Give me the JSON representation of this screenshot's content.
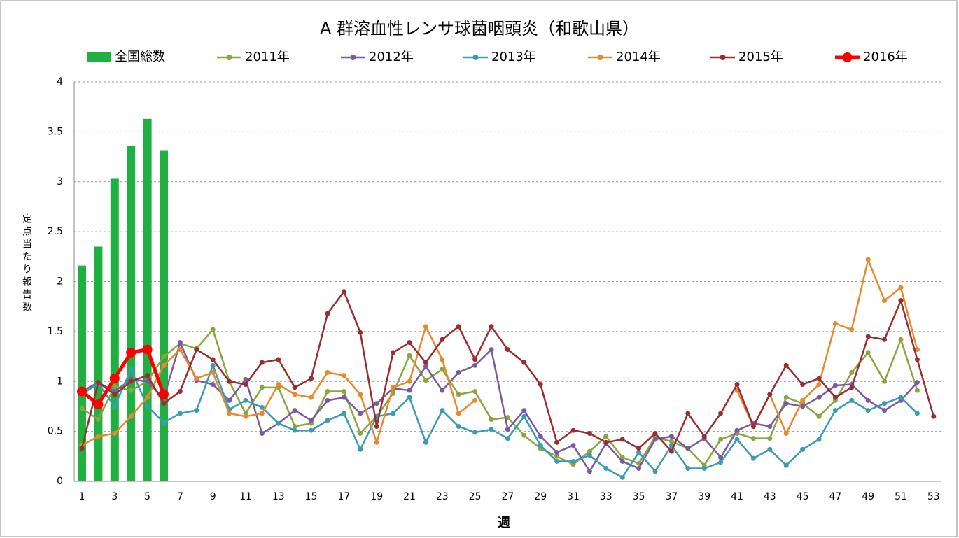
{
  "chart_data": {
    "type": "combo",
    "title": "A 群溶血性レンサ球菌咽頭炎（和歌山県）",
    "x_label": "週",
    "y_label": "定点当たり報告数",
    "categories": [
      1,
      null,
      3,
      null,
      5,
      null,
      7,
      null,
      9,
      null,
      11,
      null,
      13,
      null,
      15,
      null,
      17,
      null,
      19,
      null,
      21,
      null,
      23,
      null,
      25,
      null,
      27,
      null,
      29,
      null,
      31,
      null,
      33,
      null,
      35,
      null,
      37,
      null,
      39,
      null,
      41,
      null,
      43,
      null,
      45,
      null,
      47,
      null,
      49,
      null,
      51,
      null,
      53
    ],
    "ylim": [
      0,
      4
    ],
    "yticks": [
      0,
      0.5,
      1,
      1.5,
      2,
      2.5,
      3,
      3.5,
      4
    ],
    "grid": true,
    "legend": "top",
    "series": [
      {
        "name": "全国総数",
        "type": "bar",
        "color": "#1fb041",
        "values": [
          2.16,
          2.35,
          3.03,
          3.36,
          3.63,
          3.31,
          null,
          null,
          null,
          null,
          null,
          null,
          null,
          null,
          null,
          null,
          null,
          null,
          null,
          null,
          null,
          null,
          null,
          null,
          null,
          null,
          null,
          null,
          null,
          null,
          null,
          null,
          null,
          null,
          null,
          null,
          null,
          null,
          null,
          null,
          null,
          null,
          null,
          null,
          null,
          null,
          null,
          null,
          null,
          null,
          null,
          null,
          null
        ]
      },
      {
        "name": "2011年",
        "type": "line",
        "color": "#8aa63c",
        "line_width": 2.5,
        "values": [
          0.73,
          0.62,
          0.95,
          0.91,
          1.0,
          1.25,
          1.38,
          1.33,
          1.52,
          1.0,
          0.68,
          0.94,
          0.94,
          0.55,
          0.58,
          0.9,
          0.9,
          0.48,
          0.65,
          0.88,
          1.26,
          1.01,
          1.12,
          0.87,
          0.9,
          0.62,
          0.64,
          0.46,
          0.33,
          0.25,
          0.17,
          0.3,
          0.45,
          0.24,
          0.18,
          0.44,
          0.4,
          0.33,
          0.16,
          0.42,
          0.48,
          0.43,
          0.43,
          0.84,
          0.78,
          0.65,
          0.81,
          1.09,
          1.29,
          1.0,
          1.42,
          0.91,
          null
        ]
      },
      {
        "name": "2012年",
        "type": "line",
        "color": "#7a5ba0",
        "line_width": 2.5,
        "values": [
          0.9,
          0.99,
          0.9,
          1.02,
          1.0,
          0.83,
          1.39,
          1.01,
          0.97,
          0.81,
          1.02,
          0.48,
          0.58,
          0.71,
          0.61,
          0.81,
          0.84,
          0.68,
          0.78,
          0.93,
          0.91,
          1.15,
          0.91,
          1.09,
          1.16,
          1.32,
          0.52,
          0.71,
          0.45,
          0.29,
          0.36,
          0.1,
          0.38,
          0.2,
          0.13,
          0.42,
          0.45,
          0.33,
          0.43,
          0.24,
          0.51,
          0.58,
          0.55,
          0.78,
          0.75,
          0.84,
          0.96,
          0.97,
          0.81,
          0.71,
          0.81,
          0.99,
          null
        ]
      },
      {
        "name": "2013年",
        "type": "line",
        "color": "#3a9cb4",
        "line_width": 2.5,
        "values": [
          0.87,
          0.98,
          0.75,
          1.12,
          0.75,
          0.59,
          0.68,
          0.71,
          1.16,
          0.72,
          0.81,
          0.74,
          0.58,
          0.51,
          0.51,
          0.61,
          0.68,
          0.32,
          0.65,
          0.68,
          0.84,
          0.39,
          0.71,
          0.55,
          0.49,
          0.52,
          0.43,
          0.65,
          0.36,
          0.2,
          0.2,
          0.26,
          0.13,
          0.04,
          0.29,
          0.1,
          0.36,
          0.13,
          0.13,
          0.19,
          0.42,
          0.23,
          0.32,
          0.16,
          0.32,
          0.42,
          0.71,
          0.81,
          0.71,
          0.78,
          0.84,
          0.68,
          null
        ]
      },
      {
        "name": "2014年",
        "type": "line",
        "color": "#e8892e",
        "line_width": 2.5,
        "values": [
          0.36,
          0.45,
          0.48,
          0.65,
          0.84,
          1.16,
          1.32,
          1.03,
          1.09,
          0.68,
          0.65,
          0.68,
          0.97,
          0.87,
          0.84,
          1.09,
          1.06,
          0.87,
          0.39,
          0.94,
          1.0,
          1.55,
          1.22,
          0.68,
          0.81,
          null,
          null,
          null,
          null,
          null,
          null,
          null,
          null,
          null,
          null,
          null,
          null,
          null,
          null,
          null,
          0.91,
          0.55,
          0.87,
          0.48,
          0.81,
          0.97,
          1.58,
          1.52,
          2.22,
          1.81,
          1.94,
          1.32,
          null
        ]
      },
      {
        "name": "2015年",
        "type": "line",
        "color": "#9b2d30",
        "line_width": 2.5,
        "values": [
          0.33,
          0.99,
          0.87,
          1.0,
          1.06,
          0.78,
          0.9,
          1.32,
          1.22,
          1.0,
          0.97,
          1.19,
          1.22,
          0.94,
          1.03,
          1.68,
          1.9,
          1.49,
          0.55,
          1.29,
          1.39,
          1.19,
          1.42,
          1.55,
          1.22,
          1.55,
          1.32,
          1.19,
          0.97,
          0.39,
          0.51,
          0.48,
          0.39,
          0.42,
          0.33,
          0.48,
          0.3,
          0.68,
          0.45,
          0.68,
          0.97,
          0.55,
          0.87,
          1.16,
          0.97,
          1.03,
          0.84,
          0.94,
          1.45,
          1.42,
          1.81,
          1.22,
          0.65
        ]
      },
      {
        "name": "2016年",
        "type": "line",
        "color": "#ff0000",
        "line_width": 5,
        "values": [
          0.9,
          0.77,
          1.03,
          1.29,
          1.32,
          0.87,
          null,
          null,
          null,
          null,
          null,
          null,
          null,
          null,
          null,
          null,
          null,
          null,
          null,
          null,
          null,
          null,
          null,
          null,
          null,
          null,
          null,
          null,
          null,
          null,
          null,
          null,
          null,
          null,
          null,
          null,
          null,
          null,
          null,
          null,
          null,
          null,
          null,
          null,
          null,
          null,
          null,
          null,
          null,
          null,
          null,
          null,
          null
        ]
      }
    ]
  }
}
